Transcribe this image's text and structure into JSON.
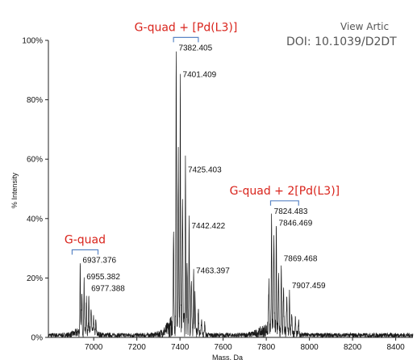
{
  "header": {
    "view_article": "View Artic",
    "doi": "DOI: 10.1039/D2DT"
  },
  "chart_data": {
    "type": "line",
    "xlabel": "Mass, Da",
    "ylabel": "% Intensity",
    "xlim": [
      6790,
      8480
    ],
    "ylim": [
      0,
      100
    ],
    "x_ticks": [
      7000,
      7200,
      7400,
      7600,
      7800,
      8000,
      8200,
      8400
    ],
    "y_ticks": [
      0,
      20,
      40,
      60,
      80,
      100
    ],
    "y_tick_labels": [
      "0%",
      "20%",
      "40%",
      "60%",
      "80%",
      "100%"
    ],
    "grid": false,
    "peaks": [
      {
        "x": 6937.376,
        "y": 23.5,
        "label": "6937.376"
      },
      {
        "x": 6955.382,
        "y": 18,
        "label": "6955.382"
      },
      {
        "x": 6977.388,
        "y": 14,
        "label": "6977.388"
      },
      {
        "x": 7382.405,
        "y": 95,
        "label": "7382.405"
      },
      {
        "x": 7401.409,
        "y": 86,
        "label": "7401.409"
      },
      {
        "x": 7425.403,
        "y": 54,
        "label": "7425.403"
      },
      {
        "x": 7442.422,
        "y": 35,
        "label": "7442.422"
      },
      {
        "x": 7463.397,
        "y": 20,
        "label": "7463.397"
      },
      {
        "x": 7824.483,
        "y": 40,
        "label": "7824.483"
      },
      {
        "x": 7846.469,
        "y": 36,
        "label": "7846.469"
      },
      {
        "x": 7869.468,
        "y": 24,
        "label": "7869.468"
      },
      {
        "x": 7907.459,
        "y": 15,
        "label": "7907.459"
      }
    ],
    "groups": [
      {
        "label": "G-quad",
        "x_start": 6900,
        "x_end": 7020
      },
      {
        "label": "G-quad + [Pd(L3)]",
        "x_start": 7370,
        "x_end": 7485
      },
      {
        "label": "G-quad + 2[Pd(L3)]",
        "x_start": 7820,
        "x_end": 7950
      }
    ],
    "colors": {
      "trace": "#1a1a1a",
      "group_label": "#d9241c",
      "bracket": "#5b86c5"
    }
  }
}
